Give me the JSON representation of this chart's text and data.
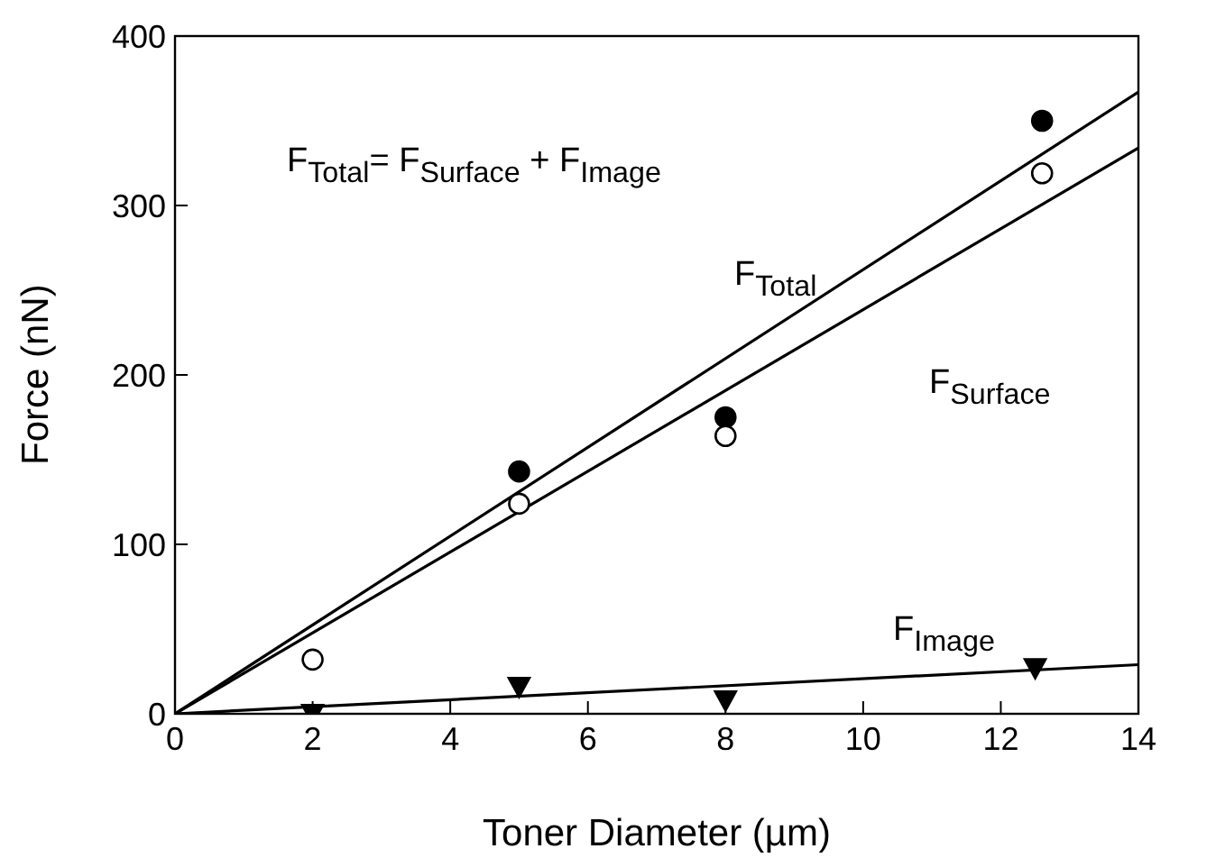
{
  "chart_data": {
    "type": "scatter",
    "xlabel": "Toner Diameter (µm)",
    "ylabel": "Force (nN)",
    "xlim": [
      0,
      14
    ],
    "xticks": [
      0,
      2,
      4,
      6,
      8,
      10,
      12,
      14
    ],
    "ylim": [
      0,
      400
    ],
    "yticks": [
      0,
      100,
      200,
      300,
      400
    ],
    "grid": false,
    "series": [
      {
        "type": "line",
        "color": "#000000",
        "marker": "none",
        "x": [
          0,
          14
        ],
        "values": [
          0,
          367
        ]
      },
      {
        "type": "line",
        "color": "#000000",
        "marker": "none",
        "x": [
          0,
          14
        ],
        "values": [
          0,
          334
        ]
      },
      {
        "type": "line",
        "color": "#000000",
        "marker": "none",
        "x": [
          0,
          14
        ],
        "values": [
          0,
          29
        ]
      },
      {
        "color": "#000000",
        "marker": "circle",
        "x": [
          5,
          8,
          12.6
        ],
        "values": [
          143,
          175,
          350
        ]
      },
      {
        "color": "#ffffff",
        "marker": "circle",
        "x": [
          2,
          5,
          8,
          12.6
        ],
        "values": [
          32,
          124,
          164,
          319
        ]
      },
      {
        "color": "#000000",
        "marker": "triangle",
        "x": [
          2,
          5,
          8,
          12.5
        ],
        "values": [
          0,
          16,
          8,
          27
        ]
      }
    ],
    "annotations": [
      "F$_{Total}$= F$_{Surface}$ + F$_{Image}$",
      "F$_{Total}$",
      "F$_{Surface}$",
      "F$_{Image}$"
    ]
  }
}
